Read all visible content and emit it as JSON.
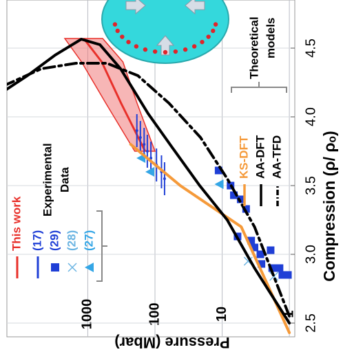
{
  "chart_data": {
    "type": "line",
    "xlabel": "Compression (ρ/ ρₒ)",
    "ylabel": "Pressure (Mbar)",
    "xlim": [
      2.4,
      4.85
    ],
    "ylim": [
      0.83,
      16000
    ],
    "ylog": true,
    "grid": true,
    "xticks": [
      2.5,
      {
        "value": 3,
        "label": "3.0"
      },
      3.5,
      {
        "value": 4,
        "label": "4.0"
      },
      4.5
    ],
    "yticks": [
      1,
      10,
      100,
      1000
    ],
    "experimental_label": [
      "Experimental",
      "Data"
    ],
    "theoretical_label": [
      "Theoretical",
      "models"
    ],
    "series": [
      {
        "name": "This work",
        "marker": "band",
        "color": "#e8302a",
        "fill": "#f07a7a",
        "x": [
          3.75,
          4.1,
          4.4,
          4.57
        ],
        "values": [
          140,
          320,
          620,
          1150
        ],
        "lower": [
          100,
          185,
          300,
          600
        ],
        "upper": [
          200,
          540,
          1240,
          2200
        ]
      },
      {
        "name": "(17)",
        "marker": "errorbar",
        "color": "#1f3fd6",
        "x": [
          3.9,
          3.85,
          3.8,
          3.75,
          3.7,
          3.65,
          3.6,
          3.55
        ],
        "values": [
          186,
          165,
          145,
          130,
          115,
          95,
          80,
          72
        ],
        "x_err": [
          0.12,
          0.12,
          0.12,
          0.12,
          0.12,
          0.12,
          0.12,
          0.12
        ]
      },
      {
        "name": "(29)",
        "marker": "square",
        "color": "#1f3fd6",
        "x": [
          3.61,
          3.5,
          3.43,
          3.4,
          3.33,
          3.13,
          3.1,
          3.05,
          3.0,
          3.03,
          2.93,
          2.9,
          2.9,
          2.85,
          2.85
        ],
        "values": [
          11.3,
          7.5,
          6.7,
          5.3,
          4.4,
          5.9,
          3.7,
          3.3,
          2.7,
          1.9,
          2.6,
          1.8,
          1.4,
          1.27,
          1.05
        ]
      },
      {
        "name": "(28)",
        "marker": "cross",
        "color": "#6ab4e2",
        "x": [
          2.84,
          2.95
        ],
        "values": [
          1.7,
          4.1
        ]
      },
      {
        "name": "(27)",
        "marker": "triangle",
        "color": "#34a6e6",
        "x": [
          3.7,
          3.6,
          3.51
        ],
        "values": [
          160,
          118,
          11
        ]
      },
      {
        "name": "KS-DFT",
        "marker": "line",
        "color": "#f59a3a",
        "x": [
          3.8,
          3.5,
          3.2,
          2.43
        ],
        "values": [
          230,
          42,
          5.2,
          1
        ]
      },
      {
        "name": "AA-DFT",
        "marker": "line",
        "color": "#000000",
        "x": [
          4.185,
          4.3,
          4.45,
          4.565,
          4.525,
          4.35,
          4.025,
          3.775,
          3.5,
          3.25,
          2.9,
          2.5
        ],
        "values": [
          18000,
          7900,
          3050,
          1250,
          660,
          325,
          127,
          55,
          21.6,
          8.4,
          3.3,
          1
        ]
      },
      {
        "name": "AA-TFD",
        "marker": "dashdot",
        "color": "#000000",
        "x": [
          4.225,
          4.35,
          4.39,
          4.39,
          4.3,
          4.1,
          3.85,
          3.55,
          3.2,
          2.55
        ],
        "values": [
          18000,
          4900,
          1500,
          520,
          180,
          62,
          21,
          8.4,
          3.3,
          1
        ]
      }
    ]
  }
}
